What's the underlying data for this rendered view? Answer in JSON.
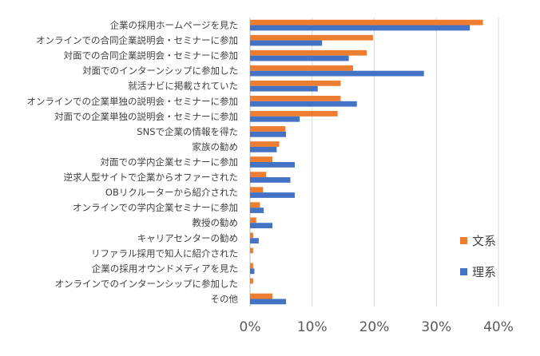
{
  "chart_data": {
    "type": "bar",
    "orientation": "horizontal",
    "categories": [
      "企業の採用ホームページを見た",
      "オンラインでの合同企業説明会・セミナーに参加",
      "対面での合同企業説明会・セミナーに参加",
      "対面でのインターンシップに参加した",
      "就活ナビに掲載されていた",
      "オンラインでの企業単独の説明会・セミナーに参加",
      "対面での企業単独の説明会・セミナーに参加",
      "SNSで企業の情報を得た",
      "家族の勧め",
      "対面での学内企業セミナーに参加",
      "逆求人型サイトで企業からオファーされた",
      "OBリクルーターから紹介された",
      "オンラインでの学内企業セミナーに参加",
      "教授の勧め",
      "キャリアセンターの勧め",
      "リファラル採用で知人に紹介された",
      "企業の採用オウンドメディアを見た",
      "オンラインでのインターンシップに参加した",
      "その他"
    ],
    "series": [
      {
        "name": "文系",
        "color": "#ED7D31",
        "values": [
          37.5,
          19.8,
          18.8,
          16.6,
          14.6,
          14.6,
          14.1,
          5.7,
          4.7,
          3.6,
          2.6,
          2.1,
          1.6,
          1.0,
          0.5,
          0.5,
          0.5,
          0.5,
          3.6
        ]
      },
      {
        "name": "理系",
        "color": "#4472C4",
        "values": [
          35.4,
          11.6,
          15.9,
          28.0,
          10.9,
          17.2,
          8.0,
          5.8,
          4.3,
          7.2,
          6.5,
          7.2,
          2.2,
          3.6,
          1.4,
          0.0,
          0.7,
          0.0,
          5.8
        ]
      }
    ],
    "xlim": [
      0,
      40
    ],
    "ticks": [
      0,
      10,
      20,
      30,
      40
    ],
    "tick_labels": [
      "0%",
      "10%",
      "20%",
      "30%",
      "40%"
    ],
    "legend": [
      {
        "name": "文系",
        "color": "#ED7D31"
      },
      {
        "name": "理系",
        "color": "#4472C4"
      }
    ],
    "legend_position": "right",
    "grid": true
  }
}
